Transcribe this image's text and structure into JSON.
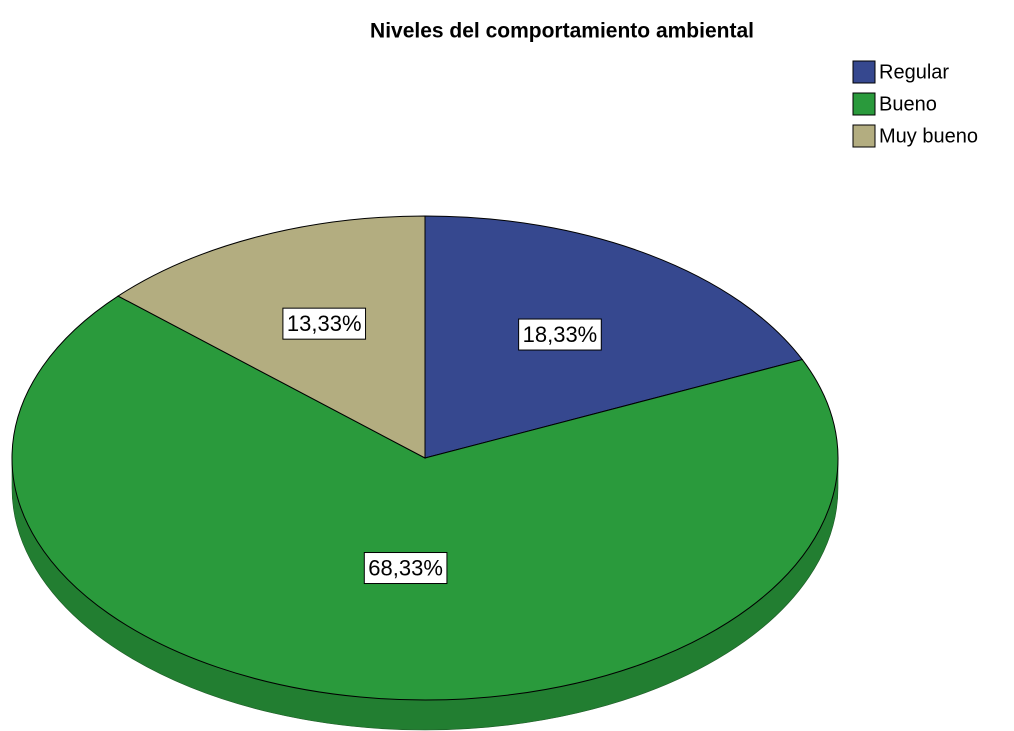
{
  "chart_data": {
    "type": "pie",
    "title": "Niveles del comportamiento ambiental",
    "categories": [
      "Regular",
      "Bueno",
      "Muy bueno"
    ],
    "values": [
      18.33,
      68.33,
      13.33
    ],
    "value_labels": [
      "18,33%",
      "68,33%",
      "13,33%"
    ],
    "colors": [
      "#36488f",
      "#2a9a3c",
      "#b3ad80"
    ],
    "legend": "top-right"
  }
}
